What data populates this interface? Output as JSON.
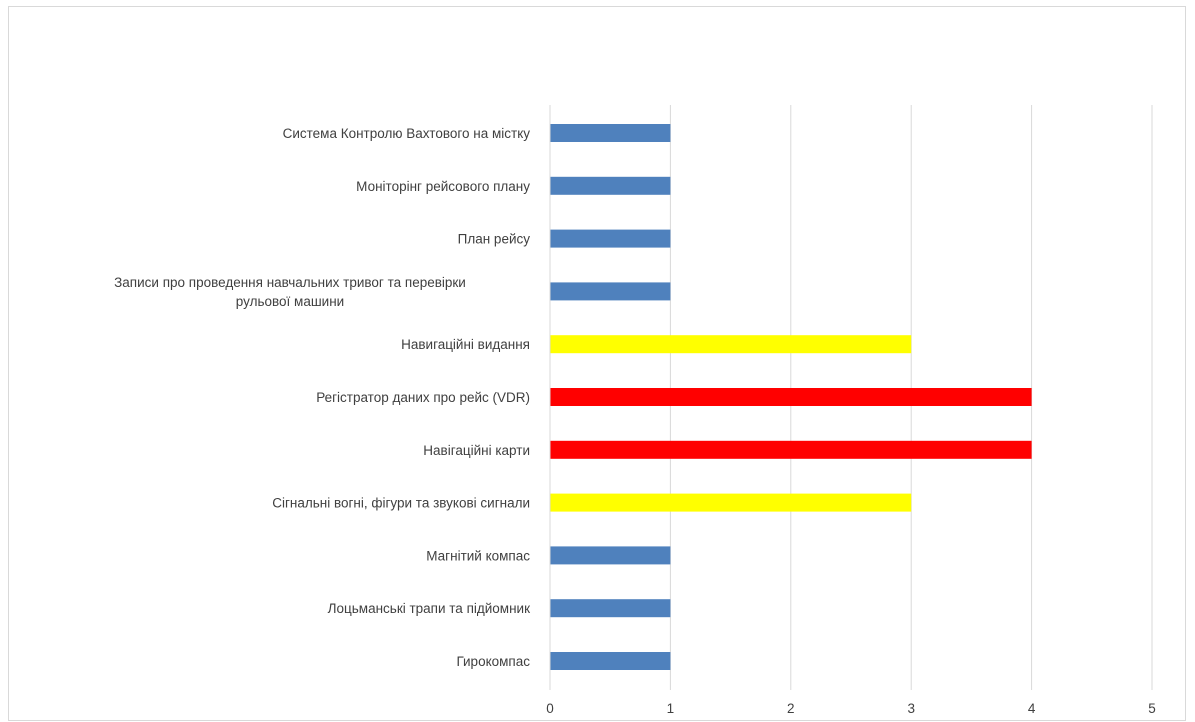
{
  "chart_data": {
    "type": "bar",
    "orientation": "horizontal",
    "categories": [
      "Система Контролю Вахтового на містку",
      "Моніторінг рейсового плану",
      "План рейсу",
      "Записи про проведення навчальних тривог та перевірки рульової машини",
      "Навигаційні видання",
      "Регістратор даних про рейс (VDR)",
      "Навігаційні карти",
      "Сігнальні вогні, фігури та звукові сигнали",
      "Магнітий компас",
      "Лоцьманські трапи та підйомник",
      "Гирокомпас"
    ],
    "label_lines": [
      [
        "Система Контролю Вахтового на містку"
      ],
      [
        "Моніторінг рейсового плану"
      ],
      [
        "План рейсу"
      ],
      [
        "Записи про проведення навчальних тривог та перевірки",
        "рульової машини"
      ],
      [
        "Навигаційні видання"
      ],
      [
        "Регістратор даних про рейс (VDR)"
      ],
      [
        "Навігаційні карти"
      ],
      [
        "Сігнальні вогні, фігури та звукові сигнали"
      ],
      [
        "Магнітий компас"
      ],
      [
        "Лоцьманські трапи та підйомник"
      ],
      [
        "Гирокомпас"
      ]
    ],
    "values": [
      1,
      1,
      1,
      1,
      3,
      4,
      4,
      3,
      1,
      1,
      1
    ],
    "bar_colors": [
      "#4f81bd",
      "#4f81bd",
      "#4f81bd",
      "#4f81bd",
      "#ffff00",
      "#ff0000",
      "#ff0000",
      "#ffff00",
      "#4f81bd",
      "#4f81bd",
      "#4f81bd"
    ],
    "xlim": [
      0,
      5
    ],
    "x_ticks": [
      "0",
      "1",
      "2",
      "3",
      "4",
      "5"
    ],
    "grid": true,
    "legend": "none",
    "title": "",
    "xlabel": "",
    "ylabel": ""
  }
}
